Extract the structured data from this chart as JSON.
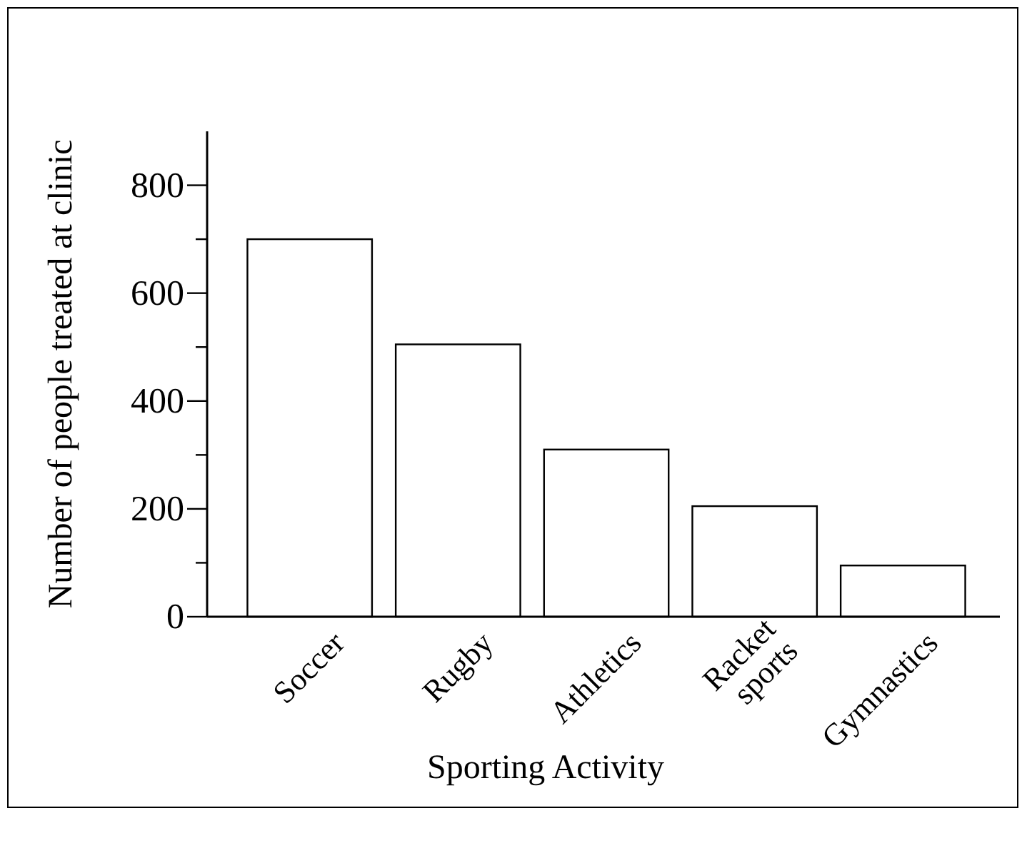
{
  "chart_data": {
    "type": "bar",
    "xlabel": "Sporting Activity",
    "ylabel": "Number of people treated at clinic",
    "categories": [
      "Soccer",
      "Rugby",
      "Athletics",
      "Racket sports",
      "Gymnastics"
    ],
    "values": [
      700,
      505,
      310,
      205,
      95
    ],
    "color": "#ffffff",
    "ylim": [
      0,
      900
    ],
    "yticks": [
      0,
      {
        "value": 100,
        "label": null
      },
      200,
      {
        "value": 300,
        "label": null
      },
      400,
      {
        "value": 500,
        "label": null
      },
      600,
      {
        "value": 700,
        "label": null
      },
      800
    ],
    "grid": false
  }
}
